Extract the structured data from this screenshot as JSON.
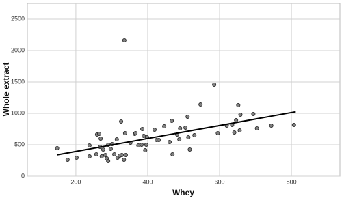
{
  "chart_data": {
    "type": "scatter",
    "x_label": "Whey",
    "y_label": "Whole extract",
    "xlim": [
      65,
      935
    ],
    "ylim": [
      0,
      2750
    ],
    "xticks": [
      200,
      400,
      600,
      800
    ],
    "yticks": [
      0,
      500,
      1000,
      1500,
      2000,
      2500
    ],
    "grid": true,
    "series": [
      {
        "color": "#808080",
        "x": [
          148,
          177,
          202,
          238,
          238,
          257,
          259,
          265,
          269,
          267,
          272,
          276,
          282,
          286,
          290,
          290,
          297,
          301,
          307,
          314,
          316,
          322,
          326,
          328,
          334,
          335,
          337,
          339,
          352,
          364,
          366,
          374,
          383,
          385,
          389,
          393,
          396,
          398,
          419,
          425,
          431,
          446,
          461,
          467,
          469,
          482,
          488,
          490,
          505,
          511,
          513,
          517,
          530,
          547,
          585,
          595,
          620,
          635,
          641,
          646,
          656,
          652,
          658,
          694,
          704,
          744,
          807
        ],
        "values": [
          446,
          261,
          293,
          489,
          315,
          348,
          663,
          674,
          598,
          467,
          315,
          424,
          337,
          283,
          239,
          500,
          435,
          511,
          348,
          587,
          293,
          326,
          870,
          337,
          261,
          2163,
          685,
          337,
          533,
          674,
          685,
          489,
          500,
          750,
          641,
          413,
          500,
          620,
          739,
          576,
          576,
          793,
          543,
          880,
          348,
          663,
          587,
          761,
          772,
          946,
          620,
          424,
          652,
          1141,
          1457,
          685,
          804,
          815,
          696,
          891,
          728,
          1130,
          978,
          989,
          761,
          804,
          815
        ]
      }
    ],
    "fit_line": {
      "color": "#000000",
      "x": [
        148,
        812
      ],
      "values": [
        340,
        1025
      ]
    }
  }
}
